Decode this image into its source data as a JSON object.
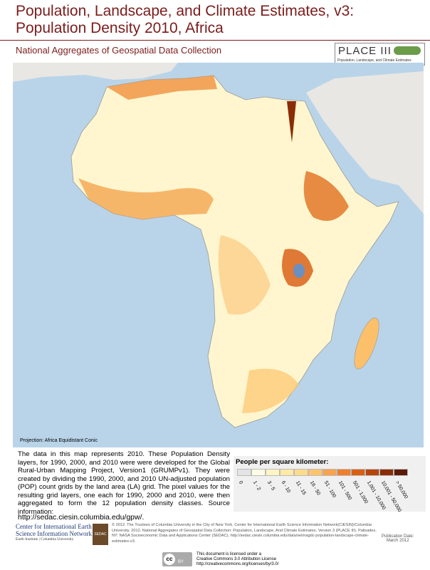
{
  "header": {
    "title_lines": [
      "Population, Landscape, and Climate Estimates, v3:",
      "Population Density 2010, Africa"
    ],
    "subtitle": "National Aggregates of Geospatial Data Collection"
  },
  "logo": {
    "name": "PLACE III",
    "tagline": "Population, Landscape, and Climate Estimates"
  },
  "map": {
    "projection": "Projection: Africa Equidistant Conic"
  },
  "description": {
    "paragraph": "The data in this map represents 2010.  These Population Density layers, for 1990, 2000, and 2010 were were developed for the Global Rural-Urban Mapping Project, Version1 (GRUMPv1). They were created by dividing the 1990, 2000, and 2010 UN-adjusted population (POP) count grids by the land area (LA) grid. The pixel values for the resulting grid layers, one each for 1990, 2000 and 2010, were then aggregated to form the 12 population density classes.  Source information:",
    "url": "http://sedac.ciesin.columbia.edu/gpw/."
  },
  "legend": {
    "title": "People per square kilometer:",
    "classes": [
      {
        "label": "0",
        "color": "#e4e4e4"
      },
      {
        "label": "1 - 2",
        "color": "#fffce6"
      },
      {
        "label": "3 - 5",
        "color": "#fff4c4"
      },
      {
        "label": "6 - 10",
        "color": "#ffe9a6"
      },
      {
        "label": "11 - 15",
        "color": "#fedb8b"
      },
      {
        "label": "16 - 50",
        "color": "#fdc46c"
      },
      {
        "label": "51 - 100",
        "color": "#f8a34e"
      },
      {
        "label": "101 - 500",
        "color": "#ee7f2e"
      },
      {
        "label": "501 - 1,000",
        "color": "#d95f15"
      },
      {
        "label": "1,001 - 10,000",
        "color": "#b6440c"
      },
      {
        "label": "10,001 - 50,000",
        "color": "#8a2d07"
      },
      {
        "label": "> 50,000",
        "color": "#5a1a05"
      }
    ]
  },
  "footer": {
    "org_name": "Center for International Earth Science Information Network",
    "org_sub": "Earth Institute | Columbia University",
    "sedac": "SEDAC",
    "copyright": "© 2012. The Trustees of Columbia University in the City of New York.  Center for International Earth Science Information Network(CIESIN)/Columbia University. 2012. National Aggregates of Geospatial Data Collection: Population, Landscape, And Climate Estimates, Version 3 (PLACE III). Palisades, NY: NASA Socioeconomic Data and Applications Center (SEDAC). http://sedac.ciesin.columbia.edu/data/set/nagdc-population-landscape-climate-estimates-v3.",
    "pub_label": "Publication Date:",
    "pub_date": "March 2012",
    "license_lines": [
      "This document is licensed under a",
      "Creative Commons 3.0 Attribution License",
      "http://creativecommons.org/licenses/by/3.0/"
    ],
    "cc": "cc",
    "by": "BY"
  }
}
